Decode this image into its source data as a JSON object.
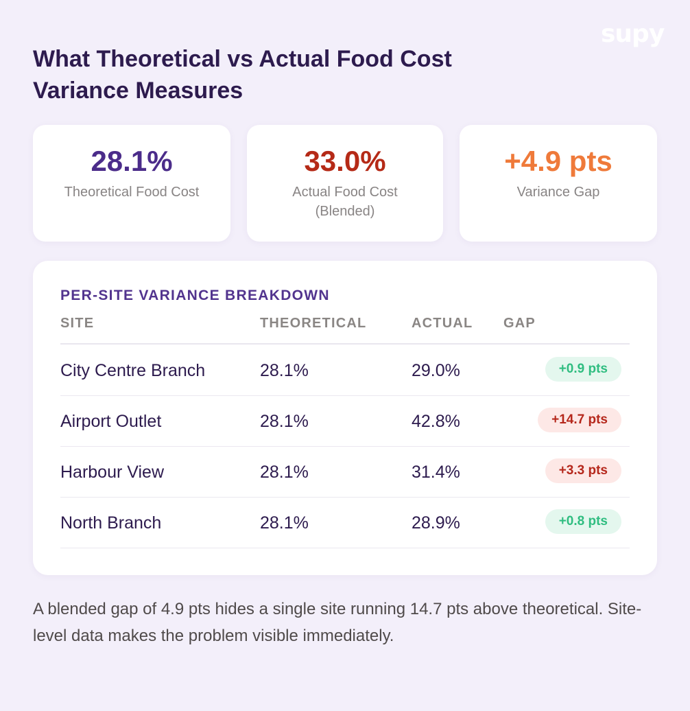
{
  "brand": {
    "logo_text": "supy"
  },
  "headline": "What Theoretical vs Actual Food Cost Variance Measures",
  "stats": [
    {
      "value": "28.1%",
      "label": "Theoretical Food Cost",
      "color": "#4b2c8a"
    },
    {
      "value": "33.0%",
      "label": "Actual Food Cost (Blended)",
      "color": "#b52a17"
    },
    {
      "value": "+4.9 pts",
      "label": "Variance Gap",
      "color": "#ef7a3a"
    }
  ],
  "table": {
    "title": "PER-SITE VARIANCE BREAKDOWN",
    "columns": [
      "SITE",
      "THEORETICAL",
      "ACTUAL",
      "GAP"
    ],
    "rows": [
      {
        "site": "City Centre Branch",
        "theoretical": "28.1%",
        "actual": "29.0%",
        "gap": "+0.9 pts",
        "gap_status": "good"
      },
      {
        "site": "Airport Outlet",
        "theoretical": "28.1%",
        "actual": "42.8%",
        "gap": "+14.7 pts",
        "gap_status": "bad"
      },
      {
        "site": "Harbour View",
        "theoretical": "28.1%",
        "actual": "31.4%",
        "gap": "+3.3 pts",
        "gap_status": "bad"
      },
      {
        "site": "North Branch",
        "theoretical": "28.1%",
        "actual": "28.9%",
        "gap": "+0.8 pts",
        "gap_status": "good"
      }
    ]
  },
  "footnote": "A blended gap of 4.9 pts hides a single site running 14.7 pts above theoretical. Site-level data makes the problem visible immediately.",
  "colors": {
    "background": "#f3effa",
    "heading": "#2d1b4e",
    "accent_purple": "#52348e",
    "good_text": "#2fbd80",
    "good_bg": "#e4f7ee",
    "bad_text": "#b5271b",
    "bad_bg": "#fde8e6"
  }
}
